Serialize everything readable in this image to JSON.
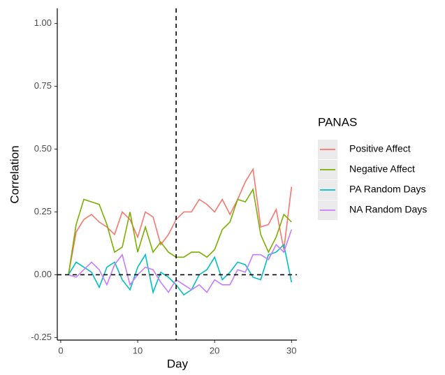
{
  "chart_data": {
    "type": "line",
    "x_label": "Day",
    "y_label": "Correlation",
    "legend_title": "PANAS",
    "x": [
      1,
      2,
      3,
      4,
      5,
      6,
      7,
      8,
      9,
      10,
      11,
      12,
      13,
      14,
      15,
      16,
      17,
      18,
      19,
      20,
      21,
      22,
      23,
      24,
      25,
      26,
      27,
      28,
      29,
      30
    ],
    "series": [
      {
        "name": "Positive Affect",
        "color": "#F8766D",
        "values": [
          0.0,
          0.17,
          0.22,
          0.24,
          0.21,
          0.19,
          0.16,
          0.25,
          0.22,
          0.15,
          0.25,
          0.23,
          0.12,
          0.16,
          0.22,
          0.25,
          0.25,
          0.3,
          0.28,
          0.25,
          0.3,
          0.24,
          0.3,
          0.37,
          0.42,
          0.19,
          0.2,
          0.26,
          0.1,
          0.35
        ]
      },
      {
        "name": "Negative Affect",
        "color": "#7CAE00",
        "values": [
          0.0,
          0.2,
          0.3,
          0.29,
          0.28,
          0.2,
          0.09,
          0.11,
          0.25,
          0.09,
          0.19,
          0.09,
          0.13,
          0.09,
          0.07,
          0.07,
          0.09,
          0.09,
          0.07,
          0.1,
          0.18,
          0.21,
          0.3,
          0.29,
          0.34,
          0.16,
          0.09,
          0.15,
          0.24,
          0.21
        ]
      },
      {
        "name": "PA Random Days",
        "color": "#00BFC4",
        "values": [
          0.0,
          0.05,
          0.03,
          0.01,
          -0.05,
          0.03,
          0.05,
          -0.02,
          -0.06,
          0.03,
          0.08,
          -0.07,
          0.01,
          -0.01,
          -0.04,
          -0.08,
          -0.06,
          0.0,
          0.02,
          0.07,
          -0.02,
          0.01,
          0.05,
          0.04,
          -0.01,
          -0.02,
          0.08,
          0.09,
          0.12,
          -0.03
        ]
      },
      {
        "name": "NA Random Days",
        "color": "#C77CFF",
        "values": [
          0.0,
          -0.01,
          0.02,
          0.05,
          0.02,
          -0.04,
          0.04,
          0.08,
          -0.04,
          0.0,
          0.03,
          0.02,
          -0.03,
          -0.07,
          -0.02,
          -0.04,
          -0.06,
          -0.04,
          -0.07,
          -0.02,
          -0.04,
          -0.04,
          0.02,
          0.01,
          0.08,
          0.08,
          0.06,
          0.12,
          0.09,
          0.18
        ]
      }
    ],
    "xlim": [
      -0.45,
      30.7
    ],
    "ylim": [
      -0.26,
      1.06
    ],
    "xticks": [
      0,
      10,
      20,
      30
    ],
    "yticks": [
      -0.25,
      {
        "value": 0,
        "label": "0.00"
      },
      0.25,
      {
        "value": 0.5,
        "label": "0.50"
      },
      0.75,
      {
        "value": 1,
        "label": "1.00"
      }
    ],
    "vline": 15,
    "hline": 0
  }
}
